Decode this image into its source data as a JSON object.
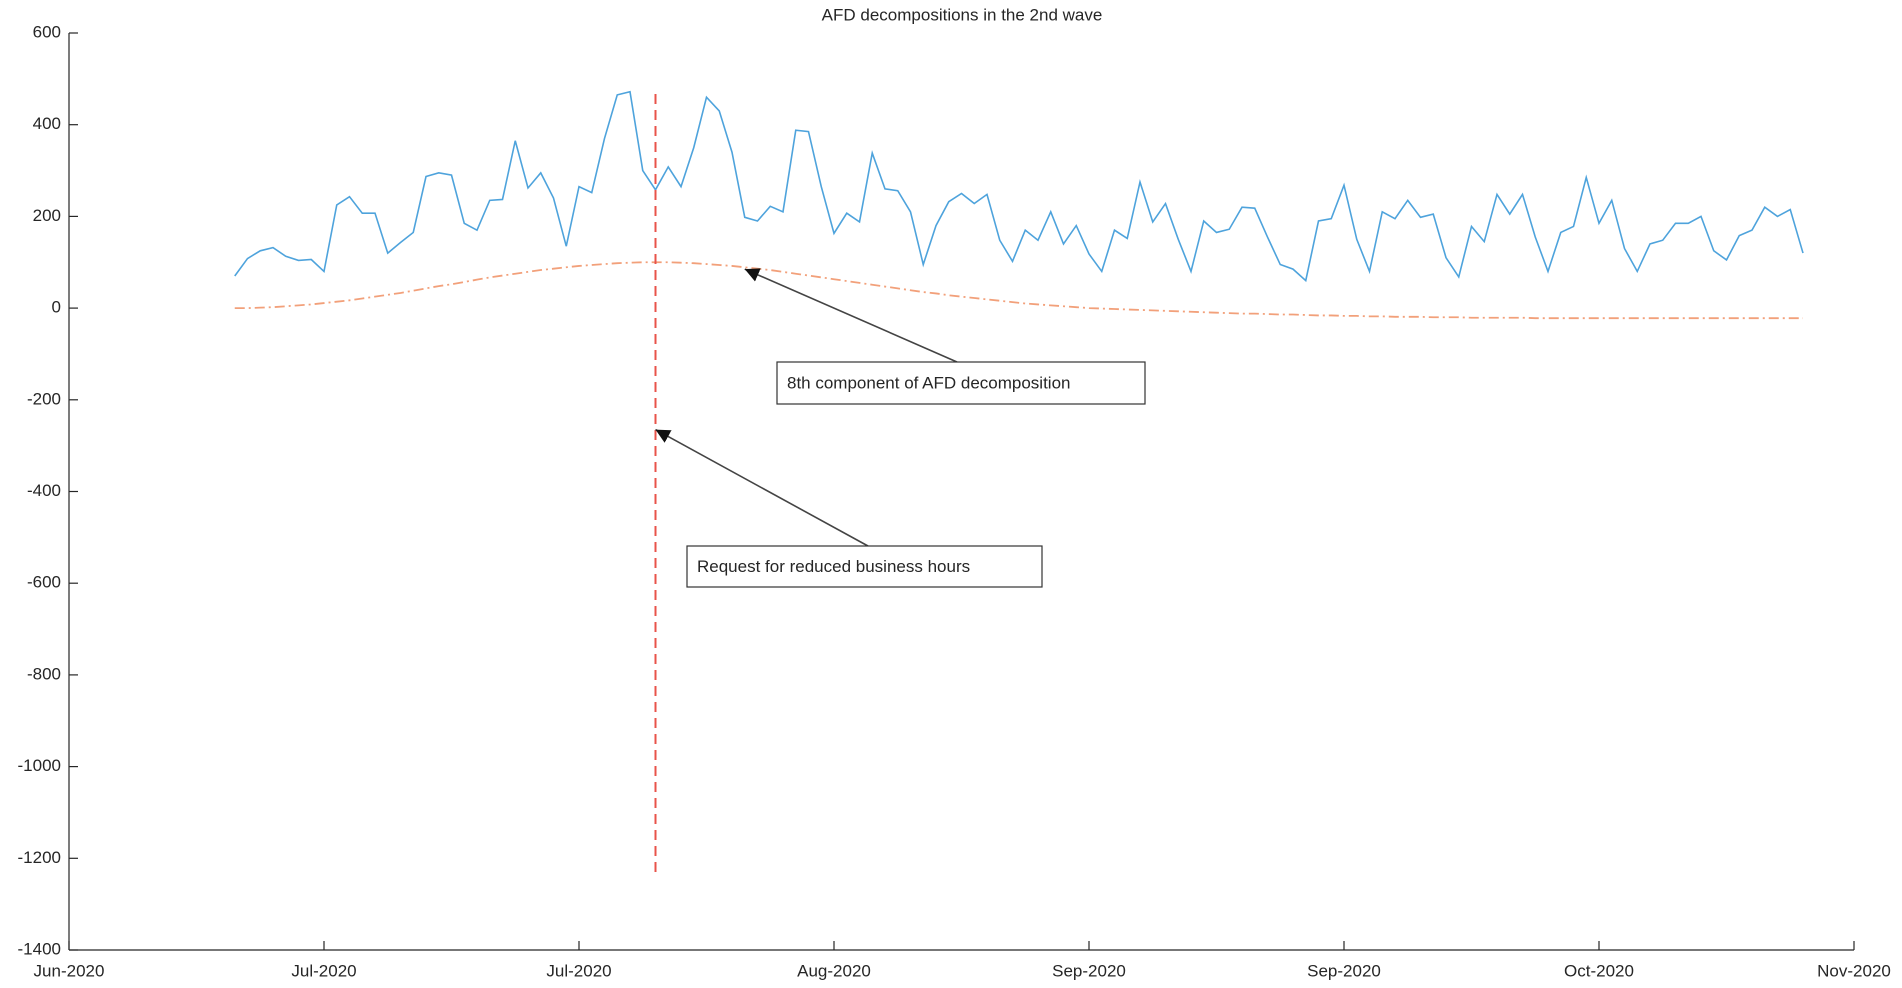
{
  "chart_data": {
    "type": "line",
    "title": "AFD decompositions in the 2nd wave",
    "xlim": [
      0,
      140
    ],
    "xticks": [
      {
        "value": 0,
        "label": "Jun-2020"
      },
      {
        "value": 20,
        "label": "Jul-2020"
      },
      {
        "value": 40,
        "label": "Jul-2020"
      },
      {
        "value": 60,
        "label": "Aug-2020"
      },
      {
        "value": 80,
        "label": "Sep-2020"
      },
      {
        "value": 100,
        "label": "Sep-2020"
      },
      {
        "value": 120,
        "label": "Oct-2020"
      },
      {
        "value": 140,
        "label": "Nov-2020"
      }
    ],
    "ylim": [
      -1400,
      600
    ],
    "yticks": [
      -1400,
      -1200,
      -1000,
      -800,
      -600,
      -400,
      -200,
      0,
      200,
      400,
      600
    ],
    "grid": false,
    "x": [
      13,
      14,
      15,
      16,
      17,
      18,
      19,
      20,
      21,
      22,
      23,
      24,
      25,
      26,
      27,
      28,
      29,
      30,
      31,
      32,
      33,
      34,
      35,
      36,
      37,
      38,
      39,
      40,
      41,
      42,
      43,
      44,
      45,
      46,
      47,
      48,
      49,
      50,
      51,
      52,
      53,
      54,
      55,
      56,
      57,
      58,
      59,
      60,
      61,
      62,
      63,
      64,
      65,
      66,
      67,
      68,
      69,
      70,
      71,
      72,
      73,
      74,
      75,
      76,
      77,
      78,
      79,
      80,
      81,
      82,
      83,
      84,
      85,
      86,
      87,
      88,
      89,
      90,
      91,
      92,
      93,
      94,
      95,
      96,
      97,
      98,
      99,
      100,
      101,
      102,
      103,
      104,
      105,
      106,
      107,
      108,
      109,
      110,
      111,
      112,
      113,
      114,
      115,
      116,
      117,
      118,
      119,
      120,
      121,
      122,
      123,
      124,
      125,
      126,
      127,
      128,
      129,
      130,
      131,
      132,
      133,
      134,
      135,
      136
    ],
    "series": [
      {
        "color": "#4ea3dc",
        "style": "solid",
        "values": [
          70,
          108,
          125,
          132,
          113,
          104,
          106,
          80,
          225,
          243,
          207,
          207,
          120,
          143,
          165,
          287,
          295,
          290,
          185,
          170,
          235,
          237,
          365,
          262,
          295,
          240,
          135,
          265,
          252,
          370,
          465,
          472,
          300,
          258,
          308,
          265,
          350,
          460,
          430,
          340,
          198,
          190,
          222,
          210,
          388,
          385,
          265,
          163,
          207,
          188,
          338,
          260,
          256,
          210,
          95,
          180,
          232,
          250,
          228,
          248,
          148,
          102,
          170,
          148,
          210,
          140,
          180,
          118,
          80,
          170,
          152,
          275,
          188,
          228,
          150,
          80,
          190,
          165,
          172,
          220,
          218,
          155,
          95,
          85,
          60,
          190,
          195,
          268,
          150,
          80,
          210,
          195,
          235,
          198,
          205,
          110,
          68,
          178,
          145,
          248,
          205,
          248,
          155,
          80,
          165,
          178,
          285,
          185,
          235,
          130,
          80,
          140,
          148,
          185,
          185,
          200,
          125,
          105,
          158,
          170,
          220,
          200,
          215,
          120
        ]
      },
      {
        "color": "#f2a07a",
        "style": "dashdot",
        "values": [
          0,
          0,
          1,
          2,
          4,
          6,
          8,
          11,
          14,
          17,
          21,
          25,
          29,
          33,
          38,
          43,
          48,
          52,
          57,
          62,
          67,
          71,
          75,
          79,
          83,
          86,
          89,
          92,
          94,
          96,
          98,
          99,
          100,
          100,
          100,
          99,
          98,
          96,
          94,
          92,
          89,
          86,
          83,
          79,
          75,
          71,
          67,
          63,
          59,
          55,
          51,
          47,
          43,
          39,
          35,
          32,
          28,
          25,
          22,
          19,
          16,
          13,
          10,
          8,
          6,
          4,
          2,
          0,
          -1,
          -2,
          -3,
          -4,
          -5,
          -6,
          -7,
          -8,
          -9,
          -10,
          -11,
          -12,
          -12,
          -13,
          -14,
          -14,
          -15,
          -16,
          -16,
          -17,
          -17,
          -18,
          -18,
          -19,
          -19,
          -19,
          -20,
          -20,
          -20,
          -21,
          -21,
          -21,
          -21,
          -21,
          -22,
          -22,
          -22,
          -22,
          -22,
          -22,
          -22,
          -22,
          -22,
          -22,
          -22,
          -22,
          -22,
          -22,
          -22,
          -22,
          -22,
          -22,
          -22,
          -22,
          -22,
          -22
        ]
      }
    ],
    "vline": {
      "x": 46,
      "y_range": [
        -1230,
        470
      ],
      "color": "#e8534a"
    },
    "annotations": [
      {
        "text": "8th component of AFD decomposition",
        "x": 53,
        "y": 85
      },
      {
        "text": "Request for reduced business hours",
        "x": 46,
        "y": -265
      }
    ]
  }
}
